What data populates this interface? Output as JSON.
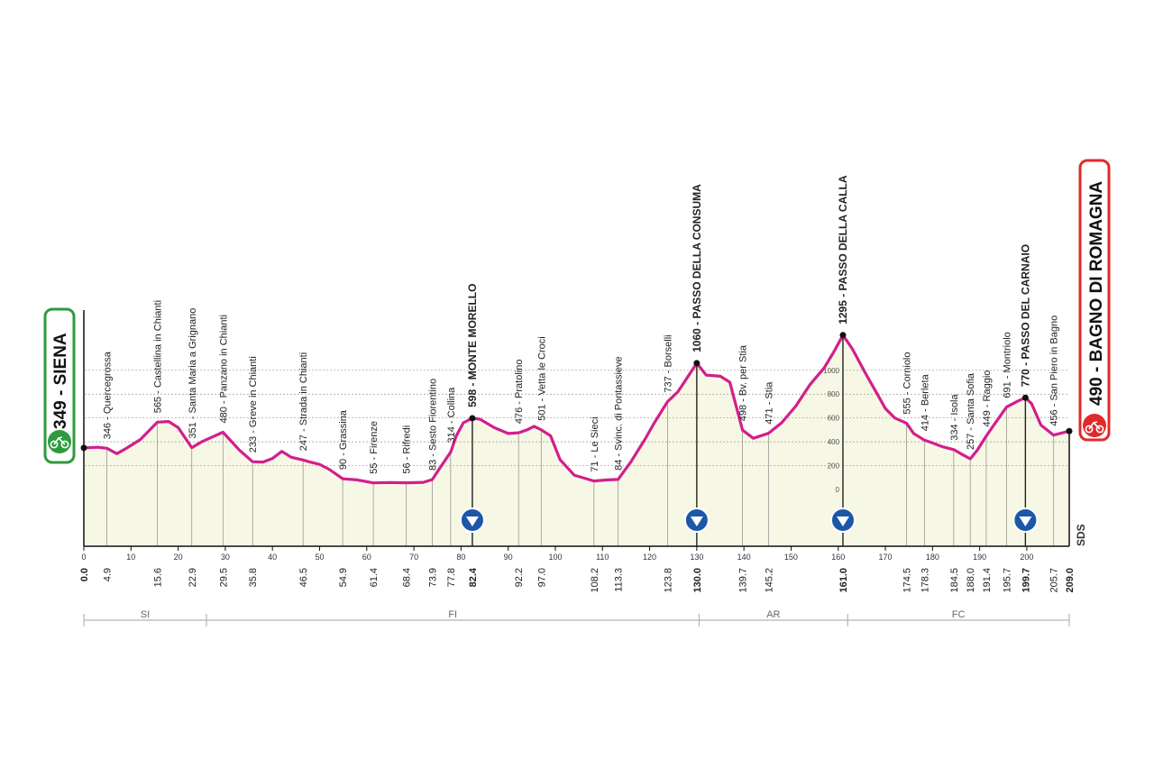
{
  "chart_data": {
    "type": "area",
    "start_label": "349 - SIENA",
    "finish_label": "490 - BAGNO DI ROMAGNA",
    "brand_mark": "SDS",
    "colors": {
      "profile_line": "#d21f8c",
      "fill": "#f7f7e6",
      "start": "#2e9a3e",
      "finish": "#e02a2a",
      "summit_marker": "#1c57a8"
    },
    "x_range": [
      0,
      209
    ],
    "x_ticks": [
      0,
      10,
      20,
      30,
      40,
      50,
      60,
      70,
      80,
      90,
      100,
      110,
      120,
      130,
      140,
      150,
      160,
      170,
      180,
      190,
      200
    ],
    "y_ticks": [
      0,
      200,
      400,
      600,
      800,
      1000
    ],
    "profile": [
      [
        0,
        349
      ],
      [
        3,
        354
      ],
      [
        4.9,
        346
      ],
      [
        7,
        300
      ],
      [
        9,
        345
      ],
      [
        12,
        420
      ],
      [
        15.6,
        565
      ],
      [
        18,
        570
      ],
      [
        20,
        520
      ],
      [
        22.9,
        351
      ],
      [
        25,
        400
      ],
      [
        29.5,
        480
      ],
      [
        33,
        330
      ],
      [
        35.8,
        233
      ],
      [
        38,
        230
      ],
      [
        40,
        260
      ],
      [
        42,
        320
      ],
      [
        44,
        270
      ],
      [
        46.5,
        247
      ],
      [
        48,
        230
      ],
      [
        50,
        210
      ],
      [
        52,
        170
      ],
      [
        54.9,
        90
      ],
      [
        58,
        80
      ],
      [
        61.4,
        55
      ],
      [
        65,
        58
      ],
      [
        68.4,
        56
      ],
      [
        72,
        60
      ],
      [
        73.9,
        83
      ],
      [
        75,
        150
      ],
      [
        77.8,
        314
      ],
      [
        79,
        450
      ],
      [
        80.5,
        560
      ],
      [
        82.4,
        598
      ],
      [
        84,
        590
      ],
      [
        87,
        520
      ],
      [
        90,
        470
      ],
      [
        92.2,
        476
      ],
      [
        94,
        500
      ],
      [
        95.5,
        530
      ],
      [
        97,
        501
      ],
      [
        99,
        450
      ],
      [
        101,
        250
      ],
      [
        104,
        120
      ],
      [
        108.2,
        71
      ],
      [
        111,
        80
      ],
      [
        113.3,
        84
      ],
      [
        116,
        230
      ],
      [
        119,
        420
      ],
      [
        121,
        560
      ],
      [
        123.8,
        737
      ],
      [
        126,
        820
      ],
      [
        128,
        940
      ],
      [
        130,
        1060
      ],
      [
        132,
        960
      ],
      [
        135,
        950
      ],
      [
        137,
        900
      ],
      [
        139.7,
        498
      ],
      [
        142,
        430
      ],
      [
        145.2,
        471
      ],
      [
        148,
        560
      ],
      [
        151,
        700
      ],
      [
        154,
        880
      ],
      [
        157,
        1020
      ],
      [
        159,
        1150
      ],
      [
        161,
        1295
      ],
      [
        163,
        1180
      ],
      [
        166,
        960
      ],
      [
        168,
        820
      ],
      [
        170,
        680
      ],
      [
        172,
        600
      ],
      [
        174.5,
        555
      ],
      [
        176,
        470
      ],
      [
        178.3,
        414
      ],
      [
        180,
        390
      ],
      [
        182,
        360
      ],
      [
        184.5,
        334
      ],
      [
        186,
        300
      ],
      [
        188,
        257
      ],
      [
        189.5,
        330
      ],
      [
        191.4,
        449
      ],
      [
        193,
        540
      ],
      [
        195.7,
        691
      ],
      [
        198,
        740
      ],
      [
        199.7,
        770
      ],
      [
        201,
        720
      ],
      [
        203,
        540
      ],
      [
        205.7,
        456
      ],
      [
        207,
        470
      ],
      [
        209,
        490
      ]
    ],
    "locations": [
      {
        "km": 4.9,
        "label": "346 - Quercegrossa",
        "major": false
      },
      {
        "km": 15.6,
        "label": "565 - Castellina in Chianti",
        "major": false
      },
      {
        "km": 22.9,
        "label": "351 - Santa Maria a Grignano",
        "major": false
      },
      {
        "km": 29.5,
        "label": "480 - Panzano in Chianti",
        "major": false
      },
      {
        "km": 35.8,
        "label": "233 - Greve in Chianti",
        "major": false
      },
      {
        "km": 46.5,
        "label": "247 - Strada in Chianti",
        "major": false
      },
      {
        "km": 54.9,
        "label": "90 - Grassina",
        "major": false
      },
      {
        "km": 61.4,
        "label": "55 - Firenze",
        "major": false
      },
      {
        "km": 68.4,
        "label": "56 - Rifredi",
        "major": false
      },
      {
        "km": 73.9,
        "label": "83 - Sesto Fiorentino",
        "major": false
      },
      {
        "km": 77.8,
        "label": "314 - Collina",
        "major": false
      },
      {
        "km": 82.4,
        "label": "598 - MONTE MORELLO",
        "major": true
      },
      {
        "km": 92.2,
        "label": "476 - Pratolino",
        "major": false
      },
      {
        "km": 97.0,
        "label": "501 - Vetta le Croci",
        "major": false
      },
      {
        "km": 108.2,
        "label": "71 - Le Sieci",
        "major": false
      },
      {
        "km": 113.3,
        "label": "84 - Svinc. di Pontassieve",
        "major": false
      },
      {
        "km": 123.8,
        "label": "737 - Borselli",
        "major": false
      },
      {
        "km": 130.0,
        "label": "1060 - PASSO DELLA CONSUMA",
        "major": true
      },
      {
        "km": 139.7,
        "label": "498 - Bv. per Stia",
        "major": false
      },
      {
        "km": 145.2,
        "label": "471 - Stia",
        "major": false
      },
      {
        "km": 161.0,
        "label": "1295 - PASSO DELLA CALLA",
        "major": true
      },
      {
        "km": 174.5,
        "label": "555 - Corniolo",
        "major": false
      },
      {
        "km": 178.3,
        "label": "414 - Berleta",
        "major": false
      },
      {
        "km": 184.5,
        "label": "334 - Isola",
        "major": false
      },
      {
        "km": 188.0,
        "label": "257 - Santa Sofia",
        "major": false
      },
      {
        "km": 191.4,
        "label": "449 - Raggio",
        "major": false
      },
      {
        "km": 195.7,
        "label": "691 - Montriolo",
        "major": false
      },
      {
        "km": 199.7,
        "label": "770 - PASSO DEL CARNAIO",
        "major": true
      },
      {
        "km": 205.7,
        "label": "456 - San Piero in Bagno",
        "major": false
      }
    ],
    "km_labels": [
      {
        "km": 0,
        "text": "0.0",
        "major": true
      },
      {
        "km": 4.9,
        "text": "4.9",
        "major": false
      },
      {
        "km": 15.6,
        "text": "15.6",
        "major": false
      },
      {
        "km": 22.9,
        "text": "22.9",
        "major": false
      },
      {
        "km": 29.5,
        "text": "29.5",
        "major": false
      },
      {
        "km": 35.8,
        "text": "35.8",
        "major": false
      },
      {
        "km": 46.5,
        "text": "46.5",
        "major": false
      },
      {
        "km": 54.9,
        "text": "54.9",
        "major": false
      },
      {
        "km": 61.4,
        "text": "61.4",
        "major": false
      },
      {
        "km": 68.4,
        "text": "68.4",
        "major": false
      },
      {
        "km": 73.9,
        "text": "73.9",
        "major": false
      },
      {
        "km": 77.8,
        "text": "77.8",
        "major": false
      },
      {
        "km": 82.4,
        "text": "82.4",
        "major": true
      },
      {
        "km": 92.2,
        "text": "92.2",
        "major": false
      },
      {
        "km": 97.0,
        "text": "97.0",
        "major": false
      },
      {
        "km": 108.2,
        "text": "108.2",
        "major": false
      },
      {
        "km": 113.3,
        "text": "113.3",
        "major": false
      },
      {
        "km": 123.8,
        "text": "123.8",
        "major": false
      },
      {
        "km": 130.0,
        "text": "130.0",
        "major": true
      },
      {
        "km": 139.7,
        "text": "139.7",
        "major": false
      },
      {
        "km": 145.2,
        "text": "145.2",
        "major": false
      },
      {
        "km": 161.0,
        "text": "161.0",
        "major": true
      },
      {
        "km": 174.5,
        "text": "174.5",
        "major": false
      },
      {
        "km": 178.3,
        "text": "178.3",
        "major": false
      },
      {
        "km": 184.5,
        "text": "184.5",
        "major": false
      },
      {
        "km": 188.0,
        "text": "188.0",
        "major": false
      },
      {
        "km": 191.4,
        "text": "191.4",
        "major": false
      },
      {
        "km": 195.7,
        "text": "195.7",
        "major": false
      },
      {
        "km": 199.7,
        "text": "199.7",
        "major": true
      },
      {
        "km": 205.7,
        "text": "205.7",
        "major": false
      },
      {
        "km": 209.0,
        "text": "209.0",
        "major": true
      }
    ],
    "summits_km": [
      82.4,
      130.0,
      161.0,
      199.7
    ],
    "provinces": [
      {
        "label": "SI",
        "from": 0,
        "to": 26
      },
      {
        "label": "FI",
        "from": 26,
        "to": 130.5
      },
      {
        "label": "AR",
        "from": 130.5,
        "to": 162
      },
      {
        "label": "FC",
        "from": 162,
        "to": 209
      }
    ]
  }
}
